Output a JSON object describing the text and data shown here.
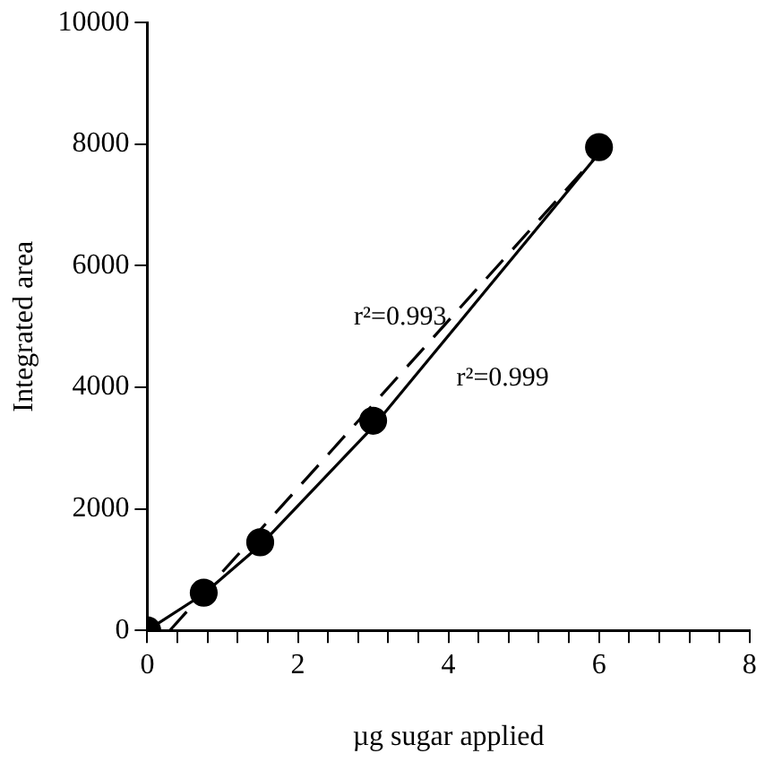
{
  "chart_data": {
    "type": "scatter",
    "xlabel": "µg sugar applied",
    "ylabel": "Integrated area",
    "series": [
      {
        "color": "#000000",
        "marker": "circle",
        "x": [
          0,
          0.75,
          1.5,
          3,
          6
        ],
        "values": [
          0,
          620,
          1450,
          3450,
          7950
        ]
      },
      {
        "type": "line",
        "color": "#000000",
        "marker": "none",
        "line_style": "solid",
        "x": [
          0,
          0.75,
          1.5,
          3,
          4.5,
          6
        ],
        "values": [
          0,
          600,
          1400,
          3350,
          5600,
          7850
        ]
      },
      {
        "type": "line",
        "color": "#000000",
        "marker": "none",
        "line_style": "dashed",
        "x": [
          0.3,
          6
        ],
        "values": [
          0,
          7850
        ]
      }
    ],
    "xlim": [
      0,
      8
    ],
    "ylim": [
      0,
      10000
    ],
    "xticks": [
      0,
      {
        "value": 0.4,
        "label": null
      },
      {
        "value": 0.8,
        "label": null
      },
      {
        "value": 1.2,
        "label": null
      },
      {
        "value": 1.6,
        "label": null
      },
      2,
      {
        "value": 2.4,
        "label": null
      },
      {
        "value": 2.8,
        "label": null
      },
      {
        "value": 3.2,
        "label": null
      },
      {
        "value": 3.6,
        "label": null
      },
      4,
      {
        "value": 4.4,
        "label": null
      },
      {
        "value": 4.8,
        "label": null
      },
      {
        "value": 5.2,
        "label": null
      },
      {
        "value": 5.6,
        "label": null
      },
      6,
      {
        "value": 6.4,
        "label": null
      },
      {
        "value": 6.8,
        "label": null
      },
      {
        "value": 7.2,
        "label": null
      },
      {
        "value": 7.6,
        "label": null
      },
      8
    ],
    "yticks": [
      0,
      2000,
      4000,
      6000,
      8000,
      10000
    ],
    "annotations": [
      "r²=0.993",
      "r²=0.999"
    ],
    "grid": false,
    "legend": false
  }
}
